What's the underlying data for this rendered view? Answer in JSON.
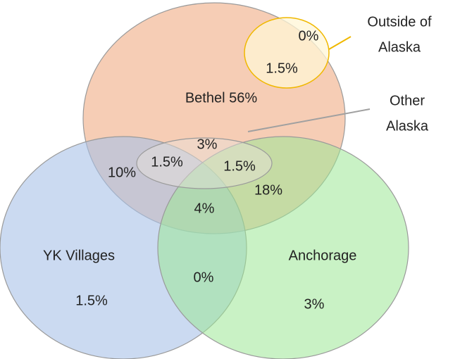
{
  "sets": [
    {
      "label": "Bethel 56%"
    },
    {
      "name": "YK Villages",
      "only": "1.5%"
    },
    {
      "name": "Anchorage",
      "only": "3%"
    }
  ],
  "outside_alaska": {
    "lines": [
      "Outside of",
      "Alaska"
    ],
    "only": "0%",
    "with_bethel": "1.5%"
  },
  "other_alaska": {
    "lines": [
      "Other",
      "Alaska"
    ],
    "with_bethel": "3%",
    "with_bethel_yk": "1.5%",
    "with_bethel_anchorage": "1.5%"
  },
  "overlaps": {
    "bethel_yk": "10%",
    "bethel_anchorage": "18%",
    "all_three": "4%",
    "yk_anchorage": "0%"
  }
}
